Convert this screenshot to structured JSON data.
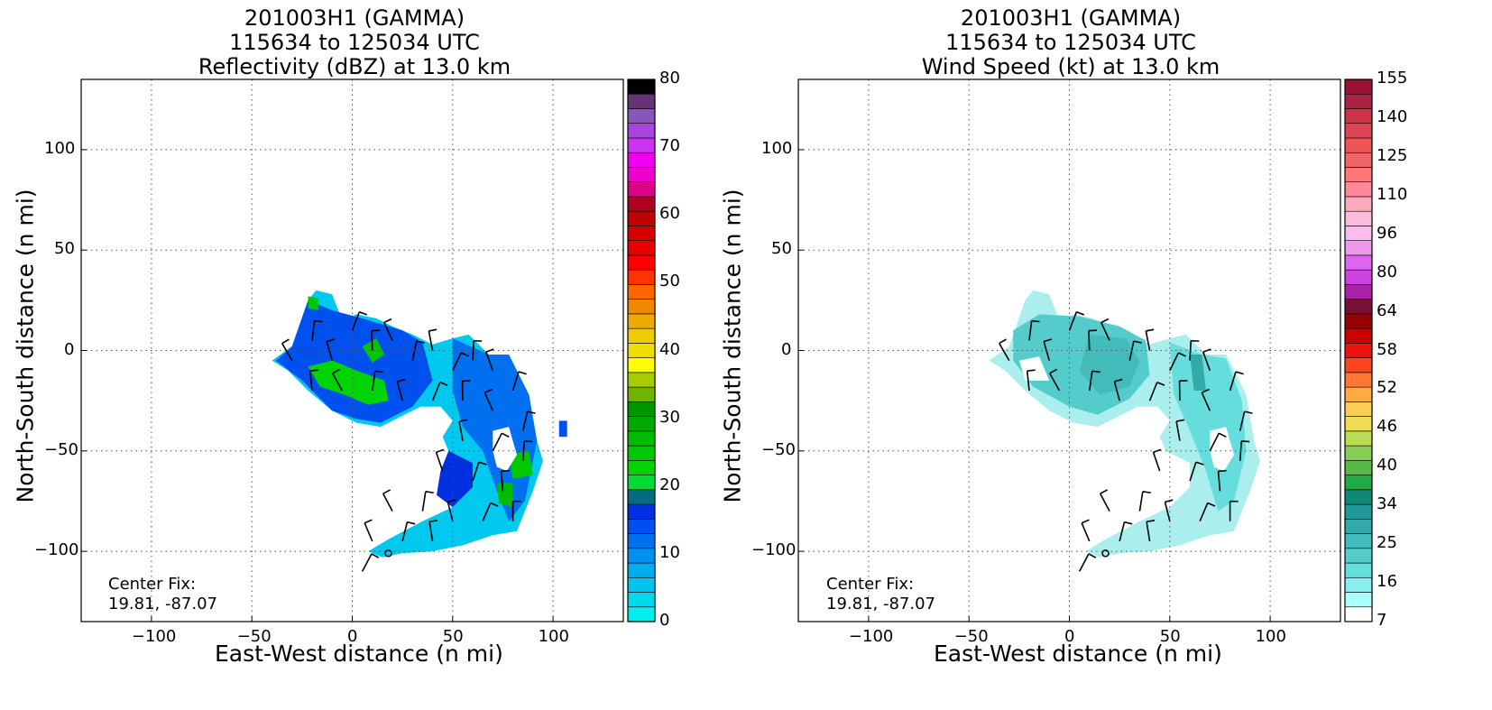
{
  "chart_data": [
    {
      "type": "heatmap",
      "title_lines": [
        "201003H1 (GAMMA)",
        "115634 to 125034 UTC",
        "Reflectivity (dBZ) at 13.0 km"
      ],
      "xlabel": "East-West distance (n mi)",
      "ylabel": "North-South distance (n mi)",
      "xlim": [
        -135,
        135
      ],
      "ylim": [
        -135,
        135
      ],
      "xticks": [
        -100,
        -50,
        0,
        50,
        100
      ],
      "yticks": [
        -100,
        -50,
        0,
        50,
        100
      ],
      "grid": true,
      "colorbar_ticks": [
        "0",
        "10",
        "20",
        "30",
        "40",
        "50",
        "60",
        "70",
        "80"
      ],
      "colorbar_colors": [
        "#00eeee",
        "#00d8ee",
        "#00c4ee",
        "#00adf0",
        "#0090f0",
        "#0070f0",
        "#0050f0",
        "#0030e0",
        "#006d80",
        "#00dd30",
        "#00d400",
        "#00c800",
        "#00bc00",
        "#00a800",
        "#009500",
        "#6eb400",
        "#a8cc00",
        "#ffff00",
        "#eedd00",
        "#eecc00",
        "#eeaa00",
        "#ee8800",
        "#ff6600",
        "#ff3300",
        "#ff0000",
        "#e80000",
        "#d40000",
        "#c00000",
        "#b00020",
        "#dd0088",
        "#ee00cc",
        "#ee00ee",
        "#cc33ee",
        "#aa44dd",
        "#8855bb",
        "#663377",
        "#000000"
      ],
      "center_fix_label": "Center Fix:",
      "center_fix_coords": "19.81, -87.07",
      "center_fix": [
        18,
        -101
      ]
    },
    {
      "type": "heatmap",
      "title_lines": [
        "201003H1 (GAMMA)",
        "115634 to 125034 UTC",
        "Wind Speed (kt) at 13.0 km"
      ],
      "xlabel": "East-West distance (n mi)",
      "ylabel": "North-South distance (n mi)",
      "xlim": [
        -135,
        135
      ],
      "ylim": [
        -135,
        135
      ],
      "xticks": [
        -100,
        -50,
        0,
        50,
        100
      ],
      "yticks": [
        -100,
        -50,
        0,
        50,
        100
      ],
      "grid": true,
      "colorbar_ticks": [
        "7",
        "16",
        "25",
        "34",
        "40",
        "46",
        "52",
        "58",
        "64",
        "80",
        "96",
        "110",
        "125",
        "140",
        "155"
      ],
      "colorbar_colors": [
        "#ffffff",
        "#aaffff",
        "#88eeee",
        "#66dddd",
        "#55cccc",
        "#44bbbb",
        "#33aaaa",
        "#229999",
        "#118877",
        "#22aa44",
        "#55bb44",
        "#88cc55",
        "#bbdd55",
        "#eedd55",
        "#ffcc55",
        "#ffaa44",
        "#ff7733",
        "#ff4422",
        "#ee1111",
        "#cc0000",
        "#990000",
        "#771133",
        "#aa22aa",
        "#cc44dd",
        "#dd66ee",
        "#ee99ee",
        "#ffbbee",
        "#ffbbdd",
        "#ffaabb",
        "#ff8899",
        "#ff7777",
        "#ee6666",
        "#ee5555",
        "#dd4455",
        "#cc3344",
        "#aa2244",
        "#991133"
      ],
      "center_fix_label": "Center Fix:",
      "center_fix_coords": "19.81, -87.07",
      "center_fix": [
        18,
        -101
      ]
    }
  ]
}
